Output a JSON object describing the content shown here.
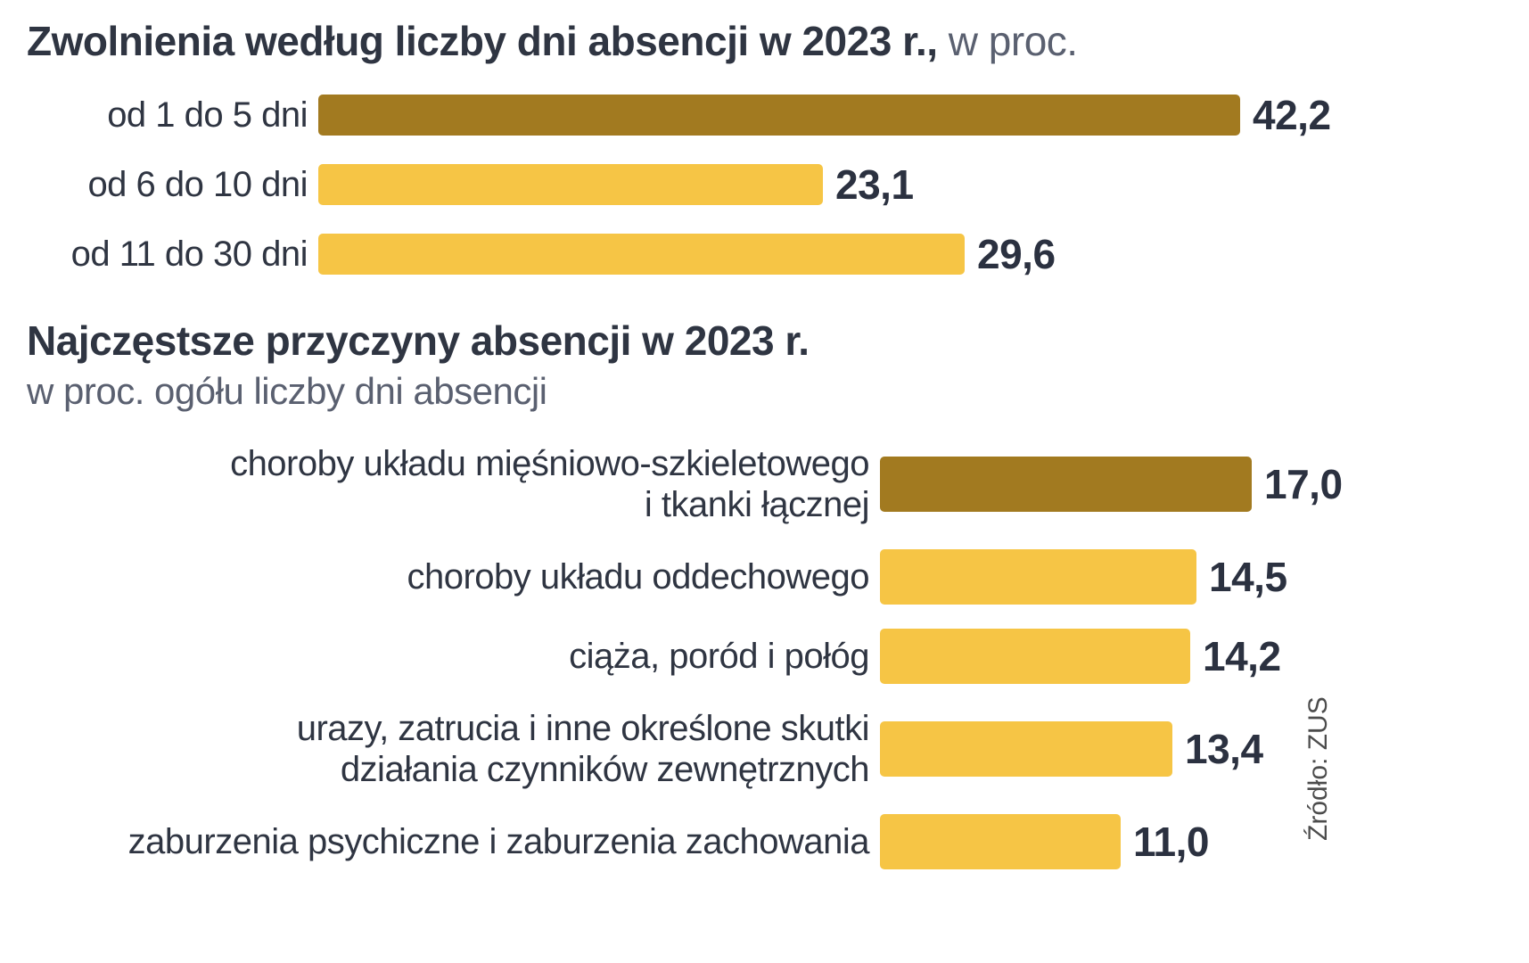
{
  "colors": {
    "primary": "#a27a20",
    "secondary": "#f6c545",
    "text": "#2f3542",
    "muted": "#5a6070"
  },
  "source": "Źródło: ZUS",
  "chart_data": [
    {
      "type": "bar",
      "orientation": "horizontal",
      "title": "Zwolnienia według liczby dni absencji w 2023 r.,",
      "title_suffix": " w proc.",
      "categories": [
        "od 1 do 5 dni",
        "od 6 do 10 dni",
        "od 11 do 30 dni"
      ],
      "values": [
        42.2,
        23.1,
        29.6
      ],
      "value_labels": [
        "42,2",
        "23,1",
        "29,6"
      ],
      "highlight": [
        true,
        false,
        false
      ],
      "xlim": [
        0,
        45
      ],
      "grid": false,
      "legend": "none"
    },
    {
      "type": "bar",
      "orientation": "horizontal",
      "title": "Najczęstsze przyczyny absencji w 2023 r.",
      "subtitle": "w proc. ogółu liczby dni absencji",
      "categories": [
        "choroby układu mięśniowo-szkieletowego\ni tkanki łącznej",
        "choroby układu oddechowego",
        "ciąża, poród i połóg",
        "urazy, zatrucia i inne określone skutki\ndziałania czynników zewnętrznych",
        "zaburzenia psychiczne i zaburzenia zachowania"
      ],
      "values": [
        17.0,
        14.5,
        14.2,
        13.4,
        11.0
      ],
      "value_labels": [
        "17,0",
        "14,5",
        "14,2",
        "13,4",
        "11,0"
      ],
      "highlight": [
        true,
        false,
        false,
        false,
        false
      ],
      "xlim": [
        0,
        45
      ],
      "grid": false,
      "legend": "none"
    }
  ]
}
